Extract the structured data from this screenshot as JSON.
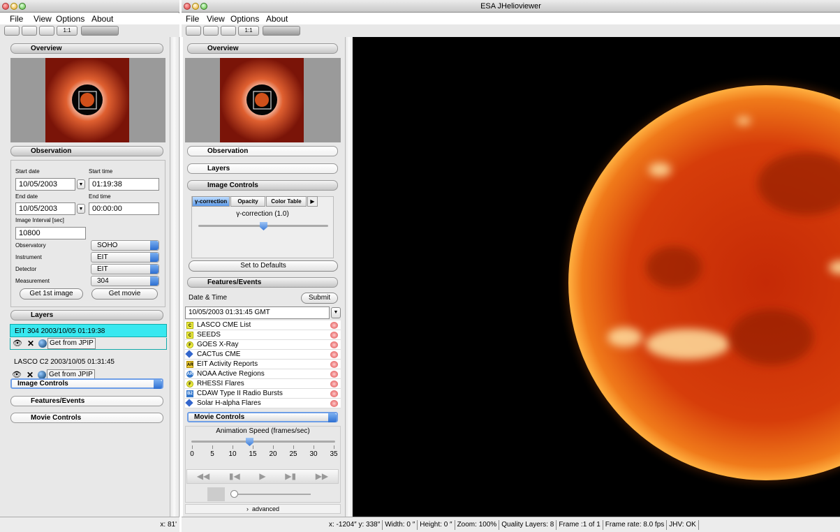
{
  "left_window": {
    "menu": [
      "File",
      "View",
      "Options",
      "About"
    ],
    "toolbar_zoom": "1:1",
    "overview": "Overview",
    "observation": {
      "title": "Observation",
      "start_date_label": "Start date",
      "start_time_label": "Start time",
      "start_date": "10/05/2003",
      "start_time": "01:19:38",
      "end_date_label": "End date",
      "end_time_label": "End time",
      "end_date": "10/05/2003",
      "end_time": "00:00:00",
      "interval_label": "Image Interval [sec]",
      "interval": "10800",
      "fields": [
        {
          "label": "Observatory",
          "value": "SOHO"
        },
        {
          "label": "Instrument",
          "value": "EIT"
        },
        {
          "label": "Detector",
          "value": "EIT"
        },
        {
          "label": "Measurement",
          "value": "304"
        }
      ],
      "buttons": [
        "Get 1st image",
        "Get movie"
      ]
    },
    "layers": {
      "title": "Layers",
      "items": [
        {
          "name": "EIT 304 2003/10/05 01:19:38",
          "action": "Get from JPIP"
        },
        {
          "name": "LASCO C2 2003/10/05 01:31:45",
          "action": "Get from JPIP"
        }
      ]
    },
    "sections": [
      "Image Controls",
      "Features/Events",
      "Movie Controls"
    ],
    "status": "x: 81'"
  },
  "right_window": {
    "title": "ESA JHelioviewer",
    "menu": [
      "File",
      "View",
      "Options",
      "About"
    ],
    "toolbar_zoom": "1:1",
    "sections": {
      "overview": "Overview",
      "observation": "Observation",
      "layers": "Layers",
      "image_controls": "Image Controls",
      "features": "Features/Events",
      "movie": "Movie Controls"
    },
    "image_controls": {
      "tabs": [
        "γ-correction",
        "Opacity",
        "Color Table"
      ],
      "slider_label": "γ-correction (1.0)",
      "reset": "Set to Defaults"
    },
    "features": {
      "date_label": "Date & Time",
      "submit": "Submit",
      "date": "10/05/2003 01:31:45 GMT",
      "catalogs": [
        {
          "icon": "C",
          "name": "LASCO CME List"
        },
        {
          "icon": "C",
          "name": "SEEDS"
        },
        {
          "icon": "F",
          "name": "GOES X-Ray"
        },
        {
          "name": "CACTus CME"
        },
        {
          "icon": "AR",
          "name": "EIT Activity Reports"
        },
        {
          "icon": "AR",
          "name": "NOAA Active Regions"
        },
        {
          "icon": "F",
          "name": "RHESSI Flares"
        },
        {
          "icon": "B2",
          "name": "CDAW Type II Radio Bursts"
        },
        {
          "name": "Solar H-alpha Flares"
        }
      ]
    },
    "movie": {
      "speed_label": "Animation Speed (frames/sec)",
      "speed_ticks": [
        0,
        5,
        10,
        15,
        20,
        25,
        30,
        35
      ],
      "advanced": "advanced"
    },
    "status": [
      "x: -1204″  y: 338″",
      "Width: 0 ″",
      "Height: 0 ″",
      "Zoom: 100%",
      "Quality Layers: 8",
      "Frame :1 of 1",
      "Frame rate: 8.0 fps",
      "JHV: OK"
    ]
  }
}
